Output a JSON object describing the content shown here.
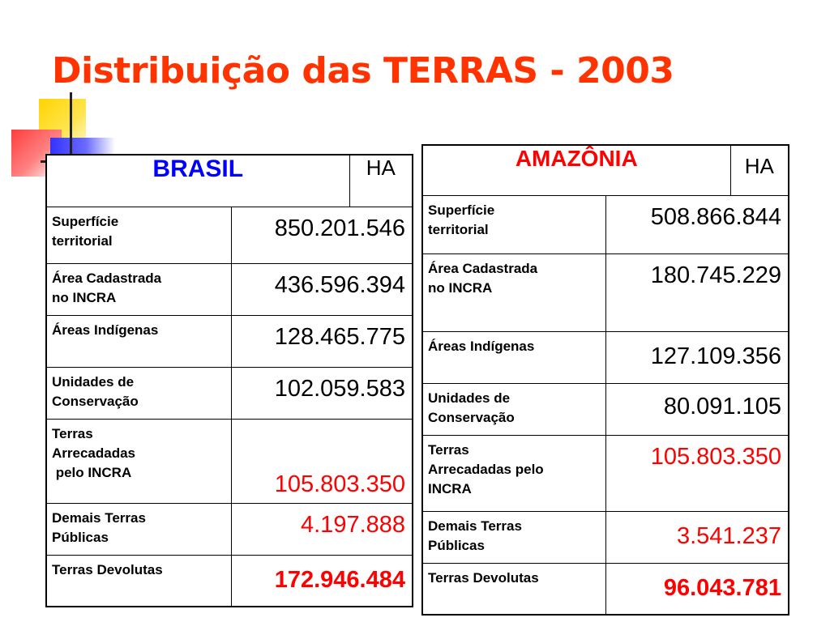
{
  "title": "Distribuição das TERRAS - 2003",
  "colors": {
    "title": "#ff3300",
    "brasil_header": "#0000ff",
    "amazonia_header": "#ff0000",
    "highlight_values": "#ff0000"
  },
  "brasil": {
    "name": "BRASIL",
    "unit": "HA",
    "rows": [
      {
        "label_1": "Superfície",
        "label_2": "territorial",
        "value": "850.201.546"
      },
      {
        "label_1": "Área Cadastrada",
        "label_2": "no INCRA",
        "value": "436.596.394"
      },
      {
        "label_1": "Áreas Indígenas",
        "label_2": "",
        "value": "128.465.775"
      },
      {
        "label_1": "Unidades de",
        "label_2": "Conservação",
        "value": "102.059.583"
      },
      {
        "label_1": "Terras",
        "label_2": "Arrecadadas",
        "label_3": " pelo INCRA",
        "value": "105.803.350"
      },
      {
        "label_1": "Demais Terras",
        "label_2": "Públicas",
        "value": "4.197.888"
      },
      {
        "label_1": "Terras Devolutas",
        "label_2": "",
        "value": "172.946.484"
      }
    ]
  },
  "amazonia": {
    "name": "AMAZÔNIA",
    "unit": "HA",
    "rows": [
      {
        "label_1": "Superfície",
        "label_2": "territorial",
        "value": "508.866.844"
      },
      {
        "label_1": "Área Cadastrada",
        "label_2": "no INCRA",
        "value": "180.745.229"
      },
      {
        "label_1": "Áreas Indígenas",
        "label_2": "",
        "value": "127.109.356"
      },
      {
        "label_1": "Unidades de",
        "label_2": "Conservação",
        "value": "80.091.105"
      },
      {
        "label_1": "Terras",
        "label_2": "Arrecadadas pelo",
        "label_3": "INCRA",
        "value": "105.803.350"
      },
      {
        "label_1": "Demais Terras",
        "label_2": "Públicas",
        "value": "3.541.237"
      },
      {
        "label_1": "Terras Devolutas",
        "label_2": "",
        "value": "96.043.781"
      }
    ]
  }
}
